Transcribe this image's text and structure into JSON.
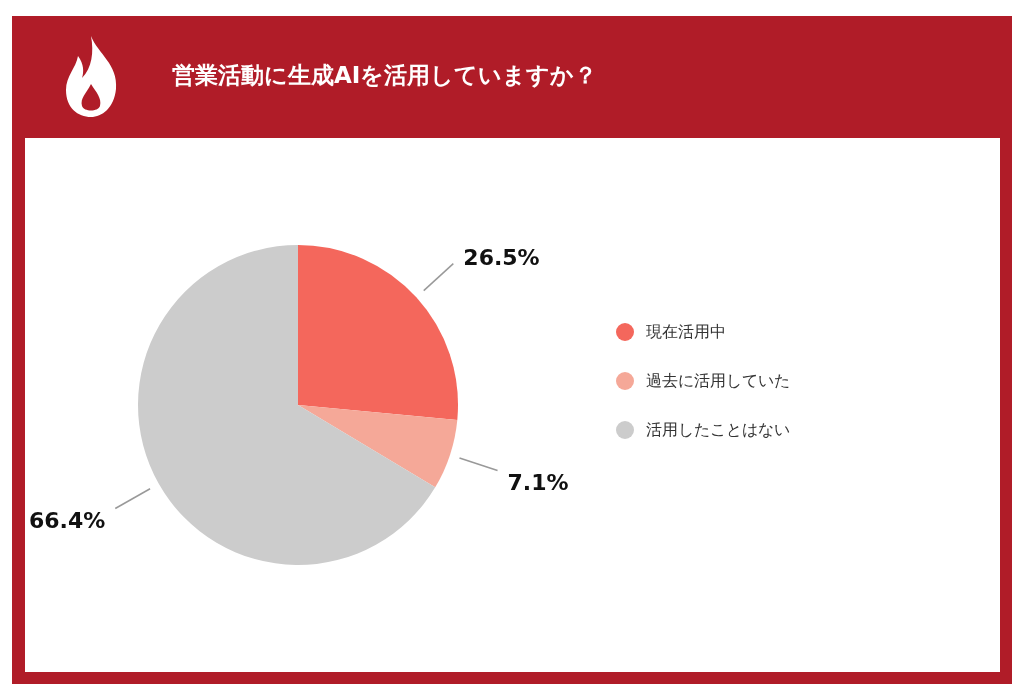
{
  "chart_data": {
    "type": "pie",
    "title": "営業活動に生成AIを活用していますか？",
    "categories": [
      "現在活用中",
      "過去に活用していた",
      "活用したことはない"
    ],
    "values": [
      26.5,
      7.1,
      66.4
    ],
    "colors": [
      "#f4675c",
      "#f5a898",
      "#cccccc"
    ],
    "value_labels": [
      "26.5%",
      "7.1%",
      "66.4%"
    ],
    "legend": "right"
  }
}
